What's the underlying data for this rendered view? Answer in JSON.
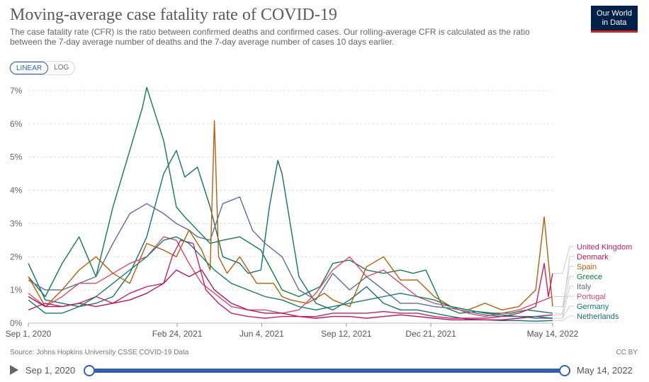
{
  "header": {
    "title": "Moving-average case fatality rate of COVID-19",
    "subtitle": "The case fatality rate (CFR) is the ratio between confirmed deaths and confirmed cases. Our rolling-average CFR is calculated as the ratio between the 7-day average number of deaths and the 7-day average number of cases 10 days earlier.",
    "logo_line1": "Our World",
    "logo_line2": "in Data"
  },
  "controls": {
    "linear_label": "LINEAR",
    "log_label": "LOG"
  },
  "footer": {
    "source": "Source: Johns Hopkins University CSSE COVID-19 Data",
    "license": "CC BY"
  },
  "timeline": {
    "start_label": "Sep 1, 2020",
    "end_label": "May 14, 2022"
  },
  "colors": {
    "United Kingdom": "#c4206a",
    "Denmark": "#b5175c",
    "Spain": "#b45f0f",
    "Greece": "#127d44",
    "Italy": "#5b6e9a",
    "Portugal": "#d94a6a",
    "Germany": "#1a7a6b",
    "Netherlands": "#1a6e74"
  },
  "chart_data": {
    "type": "line",
    "title": "Moving-average case fatality rate of COVID-19",
    "xlabel": "",
    "ylabel": "",
    "ylim": [
      0,
      7
    ],
    "y_ticks": [
      "0%",
      "1%",
      "2%",
      "3%",
      "4%",
      "5%",
      "6%",
      "7%"
    ],
    "x_ticks": [
      "Sep 1, 2020",
      "Feb 24, 2021",
      "Jun 4, 2021",
      "Sep 12, 2021",
      "Dec 21, 2021",
      "May 14, 2022"
    ],
    "x_tick_days": [
      0,
      176,
      276,
      376,
      476,
      620
    ],
    "x_range_days": [
      0,
      620
    ],
    "series": [
      {
        "name": "Greece",
        "x": [
          0,
          20,
          40,
          60,
          70,
          80,
          100,
          120,
          135,
          140,
          160,
          175,
          185,
          200,
          215,
          230,
          250,
          275,
          300,
          320,
          345,
          360,
          380,
          400,
          420,
          440,
          455,
          470,
          490,
          510,
          530,
          550,
          570,
          590,
          605,
          620
        ],
        "values": [
          1.4,
          0.8,
          1.8,
          2.6,
          2.0,
          1.4,
          3.5,
          5.2,
          6.5,
          7.1,
          5.5,
          3.5,
          3.2,
          2.8,
          2.4,
          2.5,
          2.6,
          2.2,
          1.0,
          0.8,
          1.1,
          1.8,
          1.9,
          1.6,
          1.5,
          1.6,
          1.5,
          1.6,
          0.5,
          0.3,
          0.35,
          0.3,
          0.3,
          0.4,
          0.35,
          0.3
        ]
      },
      {
        "name": "Netherlands",
        "x": [
          0,
          20,
          40,
          60,
          80,
          100,
          120,
          140,
          160,
          175,
          185,
          200,
          215,
          230,
          250,
          260,
          275,
          285,
          295,
          300,
          320,
          340,
          360,
          380,
          400,
          420,
          440,
          460,
          480,
          500,
          520,
          540,
          560,
          580,
          600,
          620
        ],
        "values": [
          1.8,
          0.7,
          0.6,
          0.5,
          0.6,
          0.8,
          1.5,
          2.6,
          4.5,
          5.2,
          4.4,
          4.7,
          3.5,
          2.0,
          1.8,
          1.5,
          1.6,
          3.5,
          4.9,
          4.5,
          1.4,
          0.6,
          0.4,
          0.7,
          1.1,
          0.6,
          0.4,
          0.4,
          0.3,
          0.2,
          0.12,
          0.1,
          0.08,
          0.08,
          0.06,
          0.08
        ]
      },
      {
        "name": "Italy",
        "x": [
          0,
          20,
          40,
          60,
          80,
          100,
          120,
          140,
          160,
          175,
          190,
          200,
          215,
          230,
          250,
          265,
          280,
          300,
          320,
          340,
          360,
          380,
          400,
          420,
          440,
          460,
          480,
          500,
          520,
          540,
          560,
          580,
          600,
          620
        ],
        "values": [
          1.3,
          1.0,
          1.0,
          1.2,
          1.4,
          2.4,
          3.3,
          3.6,
          3.3,
          3.0,
          2.8,
          2.6,
          2.5,
          3.6,
          3.8,
          2.8,
          2.4,
          2.0,
          1.0,
          0.7,
          1.5,
          1.0,
          1.4,
          1.0,
          0.6,
          0.6,
          0.5,
          0.45,
          0.35,
          0.25,
          0.2,
          0.2,
          0.15,
          0.15
        ]
      },
      {
        "name": "Spain",
        "x": [
          0,
          20,
          40,
          60,
          80,
          100,
          120,
          140,
          160,
          175,
          190,
          205,
          215,
          220,
          225,
          235,
          250,
          270,
          290,
          300,
          310,
          330,
          350,
          360,
          380,
          400,
          420,
          440,
          460,
          480,
          500,
          520,
          540,
          560,
          580,
          600,
          610,
          620
        ],
        "values": [
          1.4,
          0.5,
          1.0,
          1.6,
          2.0,
          1.5,
          1.2,
          2.4,
          2.2,
          2.0,
          2.8,
          2.2,
          1.6,
          6.1,
          2.0,
          1.5,
          2.0,
          1.2,
          1.2,
          0.8,
          0.7,
          0.6,
          0.9,
          0.7,
          0.5,
          1.7,
          2.0,
          1.3,
          1.3,
          0.8,
          0.5,
          0.4,
          0.6,
          0.4,
          0.5,
          1.0,
          3.2,
          0.5
        ]
      },
      {
        "name": "Portugal",
        "x": [
          0,
          20,
          40,
          60,
          80,
          100,
          120,
          140,
          160,
          175,
          190,
          205,
          220,
          240,
          260,
          280,
          300,
          320,
          340,
          360,
          380,
          400,
          420,
          440,
          460,
          480,
          500,
          520,
          540,
          560,
          580,
          600,
          620
        ],
        "values": [
          0.9,
          0.5,
          0.8,
          1.2,
          1.2,
          1.5,
          1.8,
          2.0,
          2.6,
          2.5,
          1.8,
          1.2,
          0.9,
          0.5,
          0.4,
          0.4,
          0.3,
          0.4,
          0.9,
          1.6,
          2.0,
          1.4,
          1.6,
          1.2,
          0.8,
          0.6,
          0.5,
          0.3,
          0.2,
          0.3,
          0.4,
          0.6,
          0.8
        ]
      },
      {
        "name": "United Kingdom",
        "x": [
          0,
          20,
          40,
          60,
          80,
          100,
          120,
          140,
          160,
          170,
          180,
          195,
          210,
          225,
          240,
          260,
          280,
          300,
          320,
          340,
          360,
          380,
          400,
          420,
          440,
          460,
          480,
          500,
          520,
          540,
          560,
          580,
          600,
          610,
          615,
          620
        ],
        "values": [
          0.4,
          0.6,
          0.5,
          0.6,
          0.8,
          0.6,
          0.9,
          1.1,
          1.2,
          2.0,
          2.5,
          2.4,
          1.0,
          0.6,
          0.3,
          0.2,
          0.15,
          0.2,
          0.2,
          0.2,
          0.3,
          0.3,
          0.3,
          0.35,
          0.3,
          0.3,
          0.2,
          0.15,
          0.15,
          0.15,
          0.2,
          0.3,
          0.5,
          1.8,
          0.8,
          1.5
        ]
      },
      {
        "name": "Denmark",
        "x": [
          0,
          20,
          40,
          60,
          80,
          100,
          120,
          140,
          160,
          175,
          190,
          205,
          220,
          240,
          260,
          280,
          300,
          320,
          340,
          360,
          380,
          400,
          420,
          440,
          460,
          480,
          500,
          520,
          540,
          560,
          580,
          600,
          620
        ],
        "values": [
          0.8,
          0.5,
          0.5,
          0.6,
          0.5,
          0.6,
          0.7,
          0.9,
          1.2,
          1.6,
          1.4,
          1.6,
          1.0,
          0.6,
          0.4,
          0.3,
          0.3,
          0.2,
          0.15,
          0.2,
          0.2,
          0.15,
          0.2,
          0.25,
          0.2,
          0.15,
          0.1,
          0.1,
          0.1,
          0.1,
          0.15,
          0.2,
          0.25
        ]
      },
      {
        "name": "Germany",
        "x": [
          0,
          20,
          40,
          60,
          80,
          100,
          120,
          140,
          160,
          175,
          190,
          205,
          220,
          240,
          260,
          280,
          300,
          320,
          340,
          360,
          380,
          400,
          420,
          440,
          460,
          480,
          500,
          520,
          540,
          560,
          580,
          600,
          620
        ],
        "values": [
          0.7,
          0.3,
          0.3,
          0.5,
          0.8,
          1.2,
          1.6,
          2.0,
          2.5,
          2.6,
          2.4,
          2.0,
          1.6,
          1.2,
          1.0,
          0.8,
          0.7,
          0.5,
          0.4,
          0.5,
          0.6,
          0.7,
          0.8,
          0.9,
          0.8,
          0.7,
          0.5,
          0.4,
          0.3,
          0.25,
          0.2,
          0.2,
          0.15
        ]
      }
    ],
    "legend_order": [
      "United Kingdom",
      "Denmark",
      "Spain",
      "Greece",
      "Italy",
      "Portugal",
      "Germany",
      "Netherlands"
    ]
  }
}
